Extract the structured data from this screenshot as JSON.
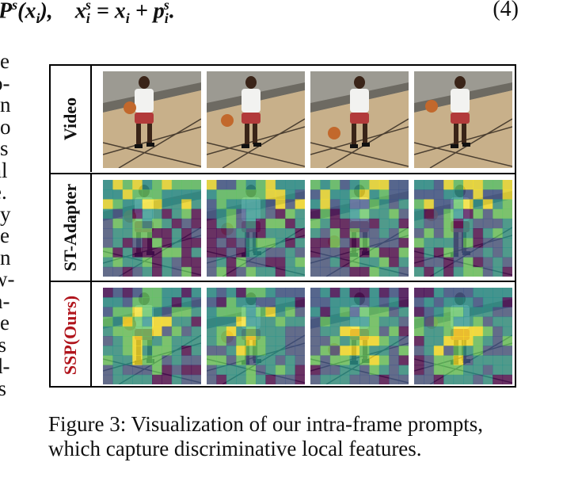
{
  "equation": {
    "text": "P^s(x_i),    x_i^s = x_i + p_i^s.",
    "number": "(4)"
  },
  "left_column_fragments": [
    "e",
    "o-",
    "n",
    "o",
    "s",
    "al",
    "e.",
    "y",
    "e",
    "n",
    "w-",
    "n-",
    "e",
    "ts",
    "d-",
    "ts"
  ],
  "figure": {
    "rows": [
      {
        "label": "Video",
        "style": "video"
      },
      {
        "label": "ST-Adapter",
        "style": "heatmap"
      },
      {
        "label": "SSP(Ours)",
        "style": "heatmap",
        "label_color": "#b0141c"
      }
    ],
    "frames_per_row": 4
  },
  "caption": "Figure 3: Visualization of our intra-frame prompts, which capture discriminative local features.",
  "colors": {
    "ssp_label": "#b0141c",
    "viridis": [
      "#440154",
      "#3b528b",
      "#21918c",
      "#5ec962",
      "#fde725"
    ]
  }
}
